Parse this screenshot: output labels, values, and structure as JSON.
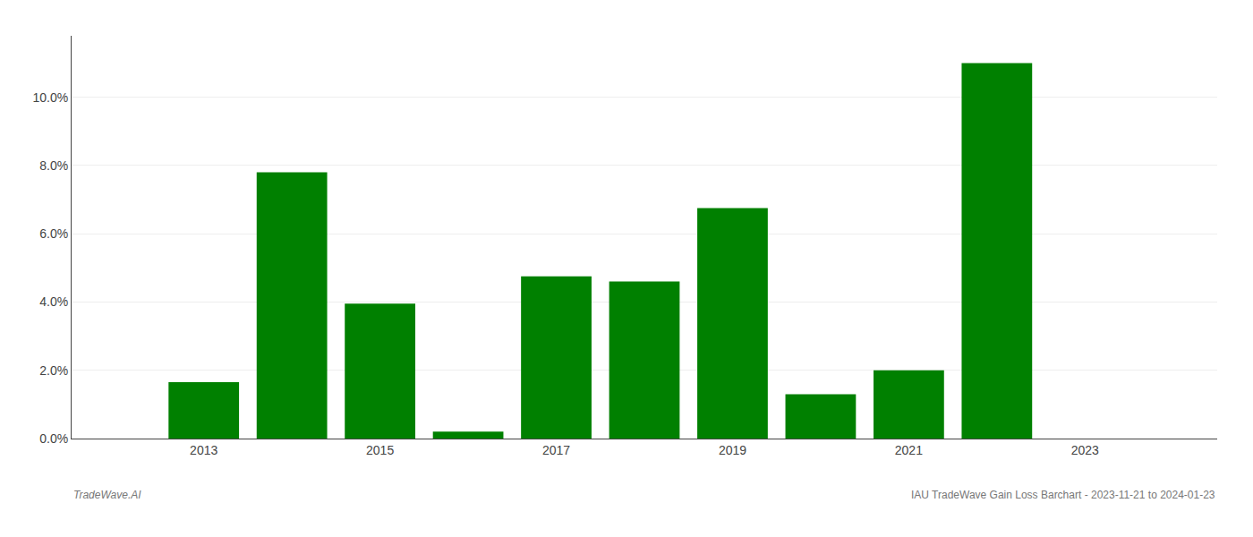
{
  "chart_data": {
    "type": "bar",
    "x": [
      2013,
      2014,
      2015,
      2016,
      2017,
      2018,
      2019,
      2020,
      2021,
      2022
    ],
    "values": [
      0.0165,
      0.078,
      0.0395,
      0.002,
      0.0475,
      0.046,
      0.0675,
      0.013,
      0.02,
      0.11
    ],
    "color": "#008000",
    "xlim": [
      2011.5,
      2024.5
    ],
    "xticks": [
      2013,
      2015,
      2017,
      2019,
      2021,
      2023
    ],
    "ylim": [
      0,
      0.118
    ],
    "yticks": [
      {
        "value": 0.0,
        "label": "0.0%"
      },
      {
        "value": 0.02,
        "label": "2.0%"
      },
      {
        "value": 0.04,
        "label": "4.0%"
      },
      {
        "value": 0.06,
        "label": "6.0%"
      },
      {
        "value": 0.08,
        "label": "8.0%"
      },
      {
        "value": 0.1,
        "label": "10.0%"
      }
    ],
    "grid": true,
    "annotations": [
      "TradeWave.AI",
      "IAU TradeWave Gain Loss Barchart - 2023-11-21 to 2024-01-23"
    ]
  }
}
